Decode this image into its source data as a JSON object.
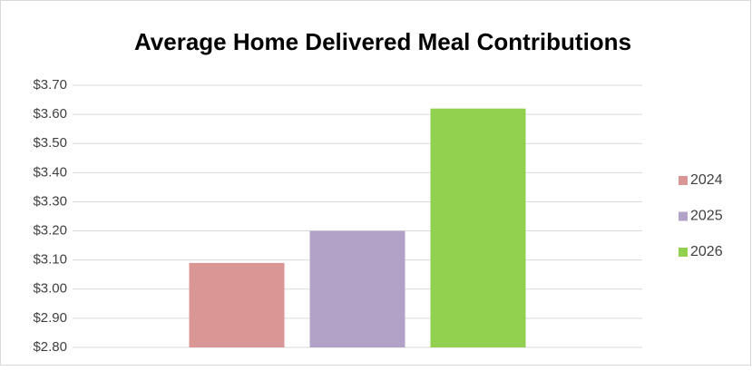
{
  "chart_data": {
    "type": "bar",
    "title": "Average Home Delivered Meal Contributions",
    "categories": [
      null
    ],
    "series": [
      {
        "name": "2024",
        "color": "#d99694",
        "values": [
          3.09
        ]
      },
      {
        "name": "2025",
        "color": "#b3a2c7",
        "values": [
          3.2
        ]
      },
      {
        "name": "2026",
        "color": "#92d050",
        "values": [
          3.62
        ]
      }
    ],
    "ylim": [
      2.8,
      3.7
    ],
    "yticks": [
      {
        "value": 2.8,
        "label": "$2.80"
      },
      {
        "value": 2.9,
        "label": "$2.90"
      },
      {
        "value": 3.0,
        "label": "$3.00"
      },
      {
        "value": 3.1,
        "label": "$3.10"
      },
      {
        "value": 3.2,
        "label": "$3.20"
      },
      {
        "value": 3.3,
        "label": "$3.30"
      },
      {
        "value": 3.4,
        "label": "$3.40"
      },
      {
        "value": 3.5,
        "label": "$3.50"
      },
      {
        "value": 3.6,
        "label": "$3.60"
      },
      {
        "value": 3.7,
        "label": "$3.70"
      }
    ],
    "grid": true,
    "legend": "right"
  }
}
